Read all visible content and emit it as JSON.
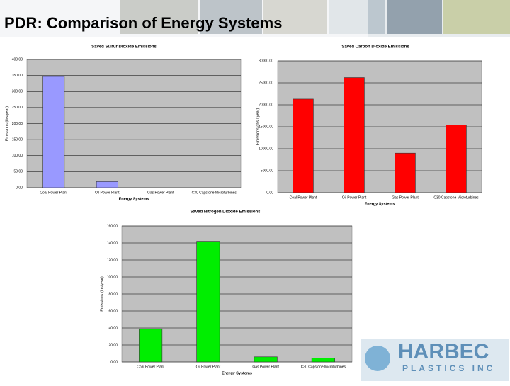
{
  "title": "PDR: Comparison of Energy Systems",
  "logo": {
    "name": "HARBEC",
    "subtitle": "PLASTICS INC"
  },
  "chart_data": [
    {
      "type": "bar",
      "title": "Saved Sulfur Dioxide Emissions",
      "xlabel": "Energy Systems",
      "ylabel": "Emissions (lbs/year)",
      "categories": [
        "Coal Power Plant",
        "Oil Power Plant",
        "Gas Power Plant",
        "C30 Capstone Microturbines"
      ],
      "values": [
        347,
        19,
        0,
        0
      ],
      "color": "#9999ff",
      "ylim": [
        0,
        400
      ],
      "yticks": [
        {
          "value": 0,
          "label": "0.00"
        },
        {
          "value": 50,
          "label": "50.00"
        },
        {
          "value": 100,
          "label": "100.00"
        },
        {
          "value": 150,
          "label": "150.00"
        },
        {
          "value": 200,
          "label": "200.00"
        },
        {
          "value": 250,
          "label": "250.00"
        },
        {
          "value": 300,
          "label": "300.00"
        },
        {
          "value": 350,
          "label": "350.00"
        },
        {
          "value": 400,
          "label": "400.00"
        }
      ],
      "grid": true
    },
    {
      "type": "bar",
      "title": "Saved Carbon Dioxide Emissions",
      "xlabel": "Energy Systems",
      "ylabel": "Emissions (lbs / year)",
      "categories": [
        "Coal Power Plant",
        "Oil Power Plant",
        "Gas Power Plant",
        "C30 Capstone Microturbines"
      ],
      "values": [
        21300,
        26200,
        9000,
        15400
      ],
      "color": "#ff0000",
      "ylim": [
        0,
        30000
      ],
      "yticks": [
        {
          "value": 0,
          "label": "0.00"
        },
        {
          "value": 5000,
          "label": "5000.00"
        },
        {
          "value": 10000,
          "label": "10000.00"
        },
        {
          "value": 15000,
          "label": "15000.00"
        },
        {
          "value": 20000,
          "label": "20000.00"
        },
        {
          "value": 25000,
          "label": "25000.00"
        },
        {
          "value": 30000,
          "label": "30000.00"
        }
      ],
      "grid": true
    },
    {
      "type": "bar",
      "title": "Saved Nitrogen Dioxide Emissions",
      "xlabel": "Energy Systems",
      "ylabel": "Emissions (lbs/year)",
      "categories": [
        "Coal Power Plant",
        "Oil Power Plant",
        "Gas Power Plant",
        "C30 Capstone Microturbines"
      ],
      "values": [
        39,
        142,
        6,
        4.5
      ],
      "color": "#00ee00",
      "ylim": [
        0,
        160
      ],
      "yticks": [
        {
          "value": 0,
          "label": "0.00"
        },
        {
          "value": 20,
          "label": "20.00"
        },
        {
          "value": 40,
          "label": "40.00"
        },
        {
          "value": 60,
          "label": "60.00"
        },
        {
          "value": 80,
          "label": "80.00"
        },
        {
          "value": 100,
          "label": "100.00"
        },
        {
          "value": 120,
          "label": "120.00"
        },
        {
          "value": 140,
          "label": "140.00"
        },
        {
          "value": 160,
          "label": "160.00"
        }
      ],
      "grid": true
    }
  ]
}
